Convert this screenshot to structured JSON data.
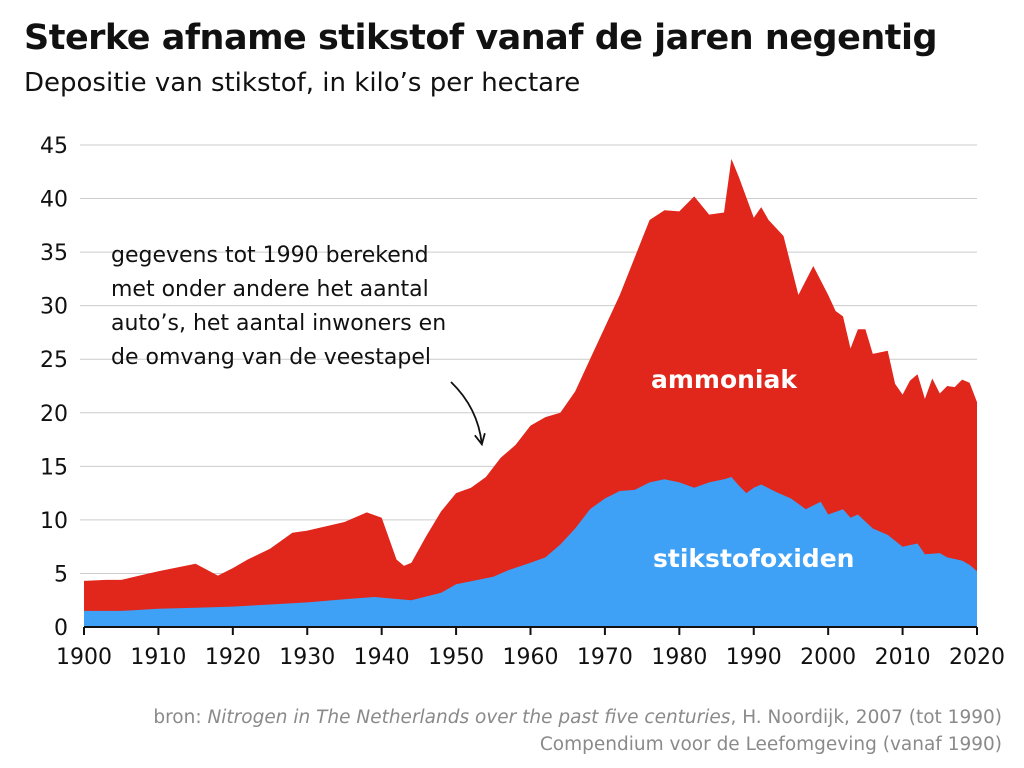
{
  "chart_data": {
    "type": "area",
    "title": "Sterke afname stikstof vanaf de jaren negentig",
    "subtitle": "Depositie van stikstof, in kilo’s per hectare",
    "xlim": [
      1900,
      2020
    ],
    "ylim": [
      0,
      45
    ],
    "x_ticks": [
      1900,
      1910,
      1920,
      1930,
      1940,
      1950,
      1960,
      1970,
      1980,
      1990,
      2000,
      2010,
      2020
    ],
    "y_ticks": [
      0,
      5,
      10,
      15,
      20,
      25,
      30,
      35,
      40,
      45
    ],
    "grid": "horizontal",
    "stacked": true,
    "colors": {
      "stikstofoxiden": "#3fa1f5",
      "ammoniak": "#e1261b",
      "grid": "#cccccc",
      "axis": "#111111"
    },
    "series": [
      {
        "name": "stikstofoxiden",
        "points": [
          [
            1900,
            1.5
          ],
          [
            1905,
            1.5
          ],
          [
            1910,
            1.7
          ],
          [
            1915,
            1.8
          ],
          [
            1920,
            1.9
          ],
          [
            1925,
            2.1
          ],
          [
            1930,
            2.3
          ],
          [
            1935,
            2.6
          ],
          [
            1939,
            2.8
          ],
          [
            1944,
            2.5
          ],
          [
            1948,
            3.2
          ],
          [
            1950,
            4.0
          ],
          [
            1955,
            4.7
          ],
          [
            1957,
            5.3
          ],
          [
            1960,
            6.0
          ],
          [
            1962,
            6.5
          ],
          [
            1964,
            7.7
          ],
          [
            1966,
            9.2
          ],
          [
            1968,
            11.0
          ],
          [
            1970,
            12.0
          ],
          [
            1972,
            12.7
          ],
          [
            1974,
            12.8
          ],
          [
            1976,
            13.5
          ],
          [
            1978,
            13.8
          ],
          [
            1980,
            13.5
          ],
          [
            1982,
            13.0
          ],
          [
            1984,
            13.5
          ],
          [
            1986,
            13.8
          ],
          [
            1987,
            14.0
          ],
          [
            1988,
            13.2
          ],
          [
            1989,
            12.5
          ],
          [
            1990,
            13.0
          ],
          [
            1991,
            13.3
          ],
          [
            1993,
            12.6
          ],
          [
            1995,
            12.0
          ],
          [
            1997,
            11.0
          ],
          [
            1999,
            11.7
          ],
          [
            2000,
            10.5
          ],
          [
            2002,
            11.0
          ],
          [
            2003,
            10.2
          ],
          [
            2004,
            10.5
          ],
          [
            2006,
            9.2
          ],
          [
            2008,
            8.6
          ],
          [
            2010,
            7.5
          ],
          [
            2012,
            7.8
          ],
          [
            2013,
            6.8
          ],
          [
            2015,
            6.9
          ],
          [
            2016,
            6.5
          ],
          [
            2018,
            6.2
          ],
          [
            2019,
            5.8
          ],
          [
            2020,
            5.2
          ]
        ]
      },
      {
        "name": "ammoniak",
        "points": [
          [
            1900,
            4.3
          ],
          [
            1903,
            4.4
          ],
          [
            1905,
            4.4
          ],
          [
            1910,
            5.2
          ],
          [
            1915,
            5.9
          ],
          [
            1918,
            4.8
          ],
          [
            1920,
            5.5
          ],
          [
            1922,
            6.3
          ],
          [
            1925,
            7.3
          ],
          [
            1928,
            8.8
          ],
          [
            1930,
            9.0
          ],
          [
            1935,
            9.8
          ],
          [
            1938,
            10.7
          ],
          [
            1940,
            10.2
          ],
          [
            1942,
            6.3
          ],
          [
            1943,
            5.7
          ],
          [
            1944,
            6.0
          ],
          [
            1946,
            8.5
          ],
          [
            1948,
            10.8
          ],
          [
            1950,
            12.5
          ],
          [
            1952,
            13.0
          ],
          [
            1954,
            14.0
          ],
          [
            1956,
            15.8
          ],
          [
            1958,
            17.0
          ],
          [
            1960,
            18.8
          ],
          [
            1962,
            19.6
          ],
          [
            1964,
            20.0
          ],
          [
            1966,
            22.0
          ],
          [
            1968,
            25.0
          ],
          [
            1970,
            28.0
          ],
          [
            1972,
            31.0
          ],
          [
            1974,
            34.5
          ],
          [
            1976,
            38.0
          ],
          [
            1978,
            38.9
          ],
          [
            1980,
            38.8
          ],
          [
            1982,
            40.2
          ],
          [
            1984,
            38.5
          ],
          [
            1986,
            38.7
          ],
          [
            1987,
            43.7
          ],
          [
            1988,
            42.0
          ],
          [
            1990,
            38.2
          ],
          [
            1991,
            39.2
          ],
          [
            1992,
            38.0
          ],
          [
            1994,
            36.5
          ],
          [
            1996,
            31.0
          ],
          [
            1998,
            33.7
          ],
          [
            2000,
            31.0
          ],
          [
            2001,
            29.5
          ],
          [
            2002,
            29.0
          ],
          [
            2003,
            26.0
          ],
          [
            2004,
            27.8
          ],
          [
            2005,
            27.8
          ],
          [
            2006,
            25.5
          ],
          [
            2008,
            25.8
          ],
          [
            2009,
            22.7
          ],
          [
            2010,
            21.7
          ],
          [
            2011,
            23.0
          ],
          [
            2012,
            23.6
          ],
          [
            2013,
            21.3
          ],
          [
            2014,
            23.2
          ],
          [
            2015,
            21.8
          ],
          [
            2016,
            22.5
          ],
          [
            2017,
            22.4
          ],
          [
            2018,
            23.1
          ],
          [
            2019,
            22.8
          ],
          [
            2020,
            21.0
          ]
        ]
      }
    ],
    "series_labels": [
      {
        "series": "ammoniak",
        "text": "ammoniak",
        "x": 1986,
        "y": 22.3,
        "color": "#ffffff"
      },
      {
        "series": "stikstofoxiden",
        "text": "stikstofoxiden",
        "x": 1990,
        "y": 5.6,
        "color": "#ffffff"
      }
    ],
    "annotation": {
      "lines": [
        "gegevens tot 1990 berekend",
        "met onder andere het aantal",
        "auto’s, het aantal inwoners en",
        "de omvang van de veestapel"
      ],
      "arrow_to": {
        "x": 1954,
        "y": 16.5
      }
    }
  },
  "source": {
    "prefix": "bron: ",
    "italic": "Nitrogen in The Netherlands over the past five centuries",
    "suffix": ", H. Noordijk, 2007 (tot 1990)",
    "line2": "Compendium voor de Leefomgeving (vanaf 1990)"
  }
}
